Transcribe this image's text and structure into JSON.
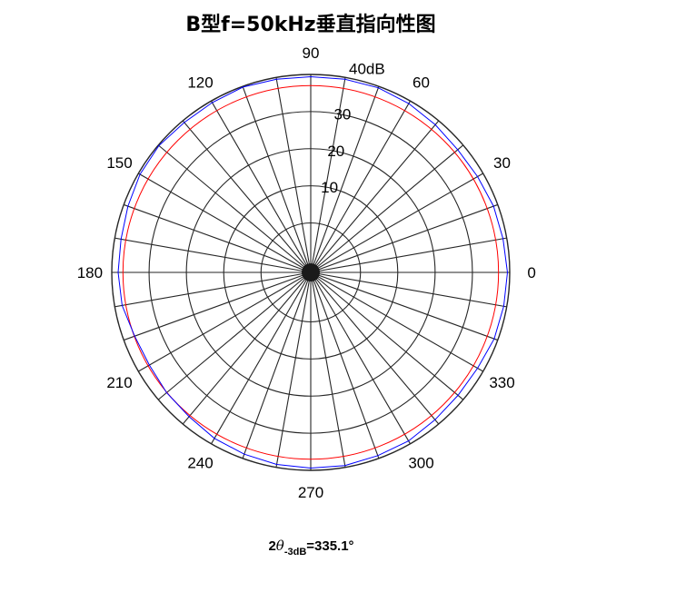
{
  "title": "B型f=50kHz垂直指向性图",
  "note": {
    "prefix": "2",
    "theta": "θ",
    "subscript": "-3dB",
    "value": "=335.1°"
  },
  "chart_data": {
    "type": "polar",
    "title": "B型f=50kHz垂直指向性图",
    "r_range": [
      0,
      40
    ],
    "r_unit": "dB",
    "r_ticks": [
      10,
      20,
      30,
      40
    ],
    "r_tick_labels": [
      "10",
      "20",
      "30",
      "40dB"
    ],
    "r_rings": [
      0,
      10,
      20,
      30,
      40
    ],
    "theta_ticks": [
      0,
      30,
      60,
      90,
      120,
      150,
      180,
      210,
      240,
      270,
      300,
      330
    ],
    "theta_tick_labels": [
      "0",
      "30",
      "60",
      "90",
      "120",
      "150",
      "180",
      "210",
      "240",
      "270",
      "300",
      "330"
    ],
    "radial_spoke_step_deg": 10,
    "grid": true,
    "series": [
      {
        "color": "#0000ff",
        "points": [
          [
            0,
            39.4
          ],
          [
            10,
            39.0
          ],
          [
            20,
            38.8
          ],
          [
            30,
            38.3
          ],
          [
            40,
            38.1
          ],
          [
            50,
            38.6
          ],
          [
            60,
            39.2
          ],
          [
            70,
            39.6
          ],
          [
            80,
            39.5
          ],
          [
            90,
            39.4
          ],
          [
            100,
            39.5
          ],
          [
            110,
            39.8
          ],
          [
            120,
            39.5
          ],
          [
            130,
            39.4
          ],
          [
            140,
            39.8
          ],
          [
            150,
            39.5
          ],
          [
            160,
            38.8
          ],
          [
            170,
            38.3
          ],
          [
            180,
            38.3
          ],
          [
            190,
            38.0
          ],
          [
            200,
            36.9
          ],
          [
            210,
            36.6
          ],
          [
            220,
            37.1
          ],
          [
            230,
            37.4
          ],
          [
            240,
            38.3
          ],
          [
            250,
            38.8
          ],
          [
            260,
            39.2
          ],
          [
            270,
            39.4
          ],
          [
            280,
            39.5
          ],
          [
            290,
            39.2
          ],
          [
            300,
            39.1
          ],
          [
            310,
            38.5
          ],
          [
            320,
            38.2
          ],
          [
            330,
            38.3
          ],
          [
            340,
            39.0
          ],
          [
            350,
            39.2
          ],
          [
            360,
            39.4
          ]
        ]
      },
      {
        "color": "#ff0000",
        "constant_r": 37
      }
    ]
  }
}
